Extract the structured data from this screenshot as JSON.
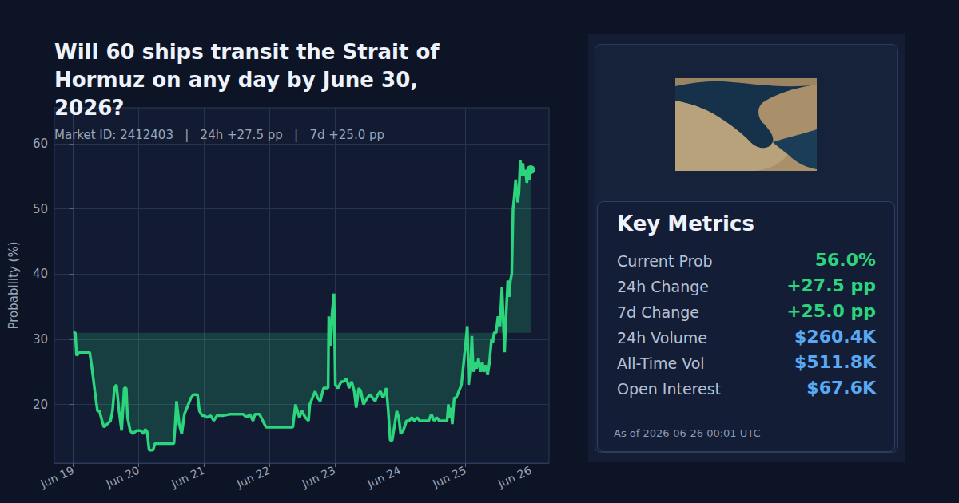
{
  "chart_data": {
    "type": "line",
    "title": "Will 60 ships transit the Strait of Hormuz on any day by June 30, 2026?",
    "subtitle": "Market ID: 2412403   |   24h +27.5 pp   |   7d +25.0 pp",
    "y_label": "Probability (%)",
    "color": "#2dd47e",
    "marker": "last",
    "grid": true,
    "x": [
      0,
      0.03,
      0.05,
      0.1,
      0.2,
      0.25,
      0.28,
      0.33,
      0.37,
      0.4,
      0.44,
      0.47,
      0.52,
      0.57,
      0.6,
      0.63,
      0.66,
      0.7,
      0.74,
      0.78,
      0.81,
      0.83,
      0.87,
      0.91,
      0.97,
      1.03,
      1.08,
      1.1,
      1.13,
      1.16,
      1.22,
      1.25,
      1.3,
      1.4,
      1.5,
      1.54,
      1.56,
      1.58,
      1.62,
      1.66,
      1.7,
      1.74,
      1.8,
      1.84,
      1.9,
      1.93,
      1.97,
      2.0,
      2.05,
      2.1,
      2.15,
      2.2,
      2.3,
      2.4,
      2.5,
      2.6,
      2.65,
      2.7,
      2.75,
      2.78,
      2.85,
      2.9,
      2.95,
      3.0,
      3.1,
      3.2,
      3.3,
      3.36,
      3.4,
      3.43,
      3.46,
      3.5,
      3.55,
      3.6,
      3.62,
      3.66,
      3.7,
      3.74,
      3.78,
      3.83,
      3.88,
      3.9,
      3.91,
      3.94,
      3.96,
      3.99,
      4.01,
      4.05,
      4.1,
      4.14,
      4.18,
      4.22,
      4.26,
      4.3,
      4.33,
      4.37,
      4.4,
      4.44,
      4.47,
      4.5,
      4.54,
      4.58,
      4.62,
      4.66,
      4.7,
      4.74,
      4.79,
      4.82,
      4.85,
      4.88,
      4.92,
      4.95,
      4.98,
      5.01,
      5.05,
      5.1,
      5.14,
      5.18,
      5.22,
      5.26,
      5.3,
      5.38,
      5.44,
      5.48,
      5.52,
      5.56,
      5.6,
      5.68,
      5.72,
      5.74,
      5.76,
      5.78,
      5.8,
      5.83,
      5.86,
      5.9,
      5.94,
      5.98,
      6.01,
      6.03,
      6.05,
      6.08,
      6.1,
      6.12,
      6.15,
      6.17,
      6.2,
      6.23,
      6.26,
      6.28,
      6.31,
      6.34,
      6.37,
      6.4,
      6.42,
      6.44,
      6.47,
      6.5,
      6.53,
      6.56,
      6.58,
      6.6,
      6.62,
      6.65,
      6.67,
      6.69,
      6.71,
      6.73,
      6.75,
      6.77,
      6.8,
      6.82,
      6.84,
      6.86,
      6.88,
      6.9,
      6.92,
      6.94,
      6.96,
      6.98,
      7.0
    ],
    "values": [
      31,
      31,
      27.5,
      28,
      28,
      28,
      26,
      22,
      19,
      19,
      17.5,
      16.5,
      17,
      17.5,
      19,
      22.5,
      23,
      19,
      16,
      22.5,
      22.5,
      18,
      16,
      15.5,
      16,
      16,
      15.5,
      16.2,
      15.8,
      13,
      13,
      14,
      14,
      14,
      14,
      14,
      17,
      20.5,
      17,
      15.5,
      18.5,
      19.5,
      21,
      21.5,
      21.5,
      19,
      18.3,
      18.3,
      18,
      18.3,
      17.5,
      18.3,
      18.3,
      18.5,
      18.5,
      18.5,
      18,
      18.5,
      17.5,
      18.5,
      18.5,
      17.5,
      16.5,
      16.5,
      16.5,
      16.5,
      16.5,
      16.5,
      20,
      19,
      18,
      19,
      18,
      17.5,
      20,
      21,
      22,
      21,
      20.5,
      22.5,
      22.5,
      22.5,
      33.5,
      29,
      34,
      37,
      23,
      22.5,
      23.5,
      23.5,
      24,
      22.5,
      23.5,
      22,
      19.5,
      22.5,
      22,
      20,
      20.5,
      21,
      21.5,
      21,
      20.5,
      21.5,
      22,
      21,
      22.5,
      19,
      14.5,
      14.5,
      17,
      19,
      18,
      15.5,
      16,
      17.5,
      17.5,
      18,
      17.5,
      18,
      17.5,
      17.5,
      17.5,
      18.5,
      17.5,
      18,
      17.5,
      17.5,
      17.5,
      20,
      18,
      19.5,
      17,
      21,
      21,
      22,
      23,
      27,
      30,
      32,
      23,
      26,
      30.5,
      25,
      26.5,
      25.5,
      27,
      25,
      26.5,
      25,
      26,
      24.5,
      26.5,
      30,
      29.5,
      31,
      31,
      33.5,
      32,
      38,
      33,
      28,
      33,
      39,
      36.5,
      39,
      40,
      50,
      52,
      54.5,
      51,
      52.5,
      57.5,
      55,
      57,
      55,
      56,
      54,
      55.5,
      54.5,
      56
    ],
    "xlim": [
      -0.29,
      7.28
    ],
    "xticks": [
      {
        "value": 0,
        "label": "Jun 19"
      },
      {
        "value": 1,
        "label": "Jun 20"
      },
      {
        "value": 2,
        "label": "Jun 21"
      },
      {
        "value": 3,
        "label": "Jun 22"
      },
      {
        "value": 4,
        "label": "Jun 23"
      },
      {
        "value": 5,
        "label": "Jun 24"
      },
      {
        "value": 6,
        "label": "Jun 25"
      },
      {
        "value": 7,
        "label": "Jun 26"
      }
    ],
    "ylim": [
      11,
      65.5
    ],
    "yticks": [
      20,
      30,
      40,
      50,
      60
    ]
  },
  "panel": {
    "heading": "Key Metrics",
    "metrics": [
      {
        "label": "Current Prob",
        "value": "56.0%",
        "color": "#2dd47e"
      },
      {
        "label": "24h Change",
        "value": "+27.5 pp",
        "color": "#2dd47e"
      },
      {
        "label": "7d Change",
        "value": "+25.0 pp",
        "color": "#2dd47e"
      },
      {
        "label": "24h Volume",
        "value": "$260.4K",
        "color": "#5aa9f5"
      },
      {
        "label": "All-Time Vol",
        "value": "$511.8K",
        "color": "#5aa9f5"
      },
      {
        "label": "Open Interest",
        "value": "$67.6K",
        "color": "#5aa9f5"
      }
    ],
    "footnote": "As of 2026-06-26 00:01 UTC"
  }
}
